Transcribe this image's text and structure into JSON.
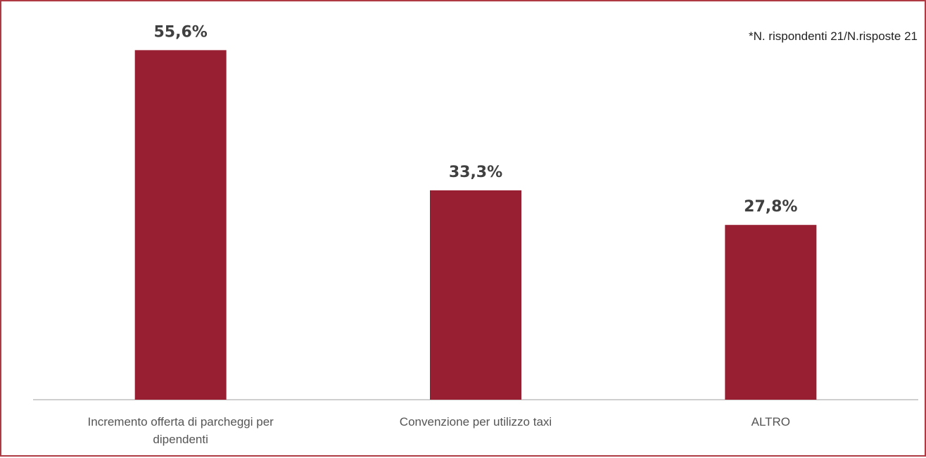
{
  "note": "*N. rispondenti 21/N.risposte 21",
  "colors": {
    "bar": "#981e32",
    "frame": "#b03a44",
    "axis": "#bfbfbf"
  },
  "chart_data": {
    "type": "bar",
    "categories": [
      [
        "Incremento offerta di parcheggi per",
        "dipendenti"
      ],
      [
        "Convenzione per utilizzo taxi"
      ],
      [
        "ALTRO"
      ]
    ],
    "values": [
      55.6,
      33.3,
      27.8
    ],
    "value_labels": [
      "55,6%",
      "33,3%",
      "27,8%"
    ],
    "ylim": [
      0,
      60
    ],
    "grid": false,
    "legend": "none"
  }
}
